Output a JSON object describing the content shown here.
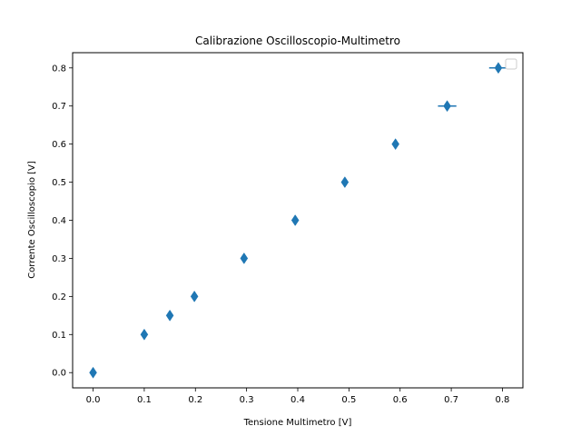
{
  "chart_data": {
    "type": "scatter",
    "title": "Calibrazione Oscilloscopio-Multimetro",
    "xlabel": "Tensione Multimetro [V]",
    "ylabel": "Corrente Oscilloscopio [V]",
    "xlim": [
      -0.04,
      0.84
    ],
    "ylim": [
      -0.04,
      0.84
    ],
    "xticks": [
      0.0,
      0.1,
      0.2,
      0.3,
      0.4,
      0.5,
      0.6,
      0.7,
      0.8
    ],
    "yticks": [
      0.0,
      0.1,
      0.2,
      0.3,
      0.4,
      0.5,
      0.6,
      0.7,
      0.8
    ],
    "xtick_labels": [
      "0.0",
      "0.1",
      "0.2",
      "0.3",
      "0.4",
      "0.5",
      "0.6",
      "0.7",
      "0.8"
    ],
    "ytick_labels": [
      "0.0",
      "0.1",
      "0.2",
      "0.3",
      "0.4",
      "0.5",
      "0.6",
      "0.7",
      "0.8"
    ],
    "grid": false,
    "legend": "top-right",
    "marker": "thin-diamond",
    "color": "#1f77b4",
    "series": [
      {
        "x": [
          0.0,
          0.1,
          0.15,
          0.198,
          0.295,
          0.395,
          0.492,
          0.591,
          0.692,
          0.792
        ],
        "y": [
          0.0,
          0.1,
          0.15,
          0.2,
          0.3,
          0.4,
          0.5,
          0.6,
          0.7,
          0.8
        ],
        "xerr": [
          0.002,
          0.002,
          0.002,
          0.003,
          0.005,
          0.005,
          0.005,
          0.005,
          0.018,
          0.018
        ],
        "yerr": [
          0.004,
          0.004,
          0.004,
          0.004,
          0.004,
          0.004,
          0.004,
          0.004,
          0.004,
          0.004
        ]
      }
    ]
  }
}
